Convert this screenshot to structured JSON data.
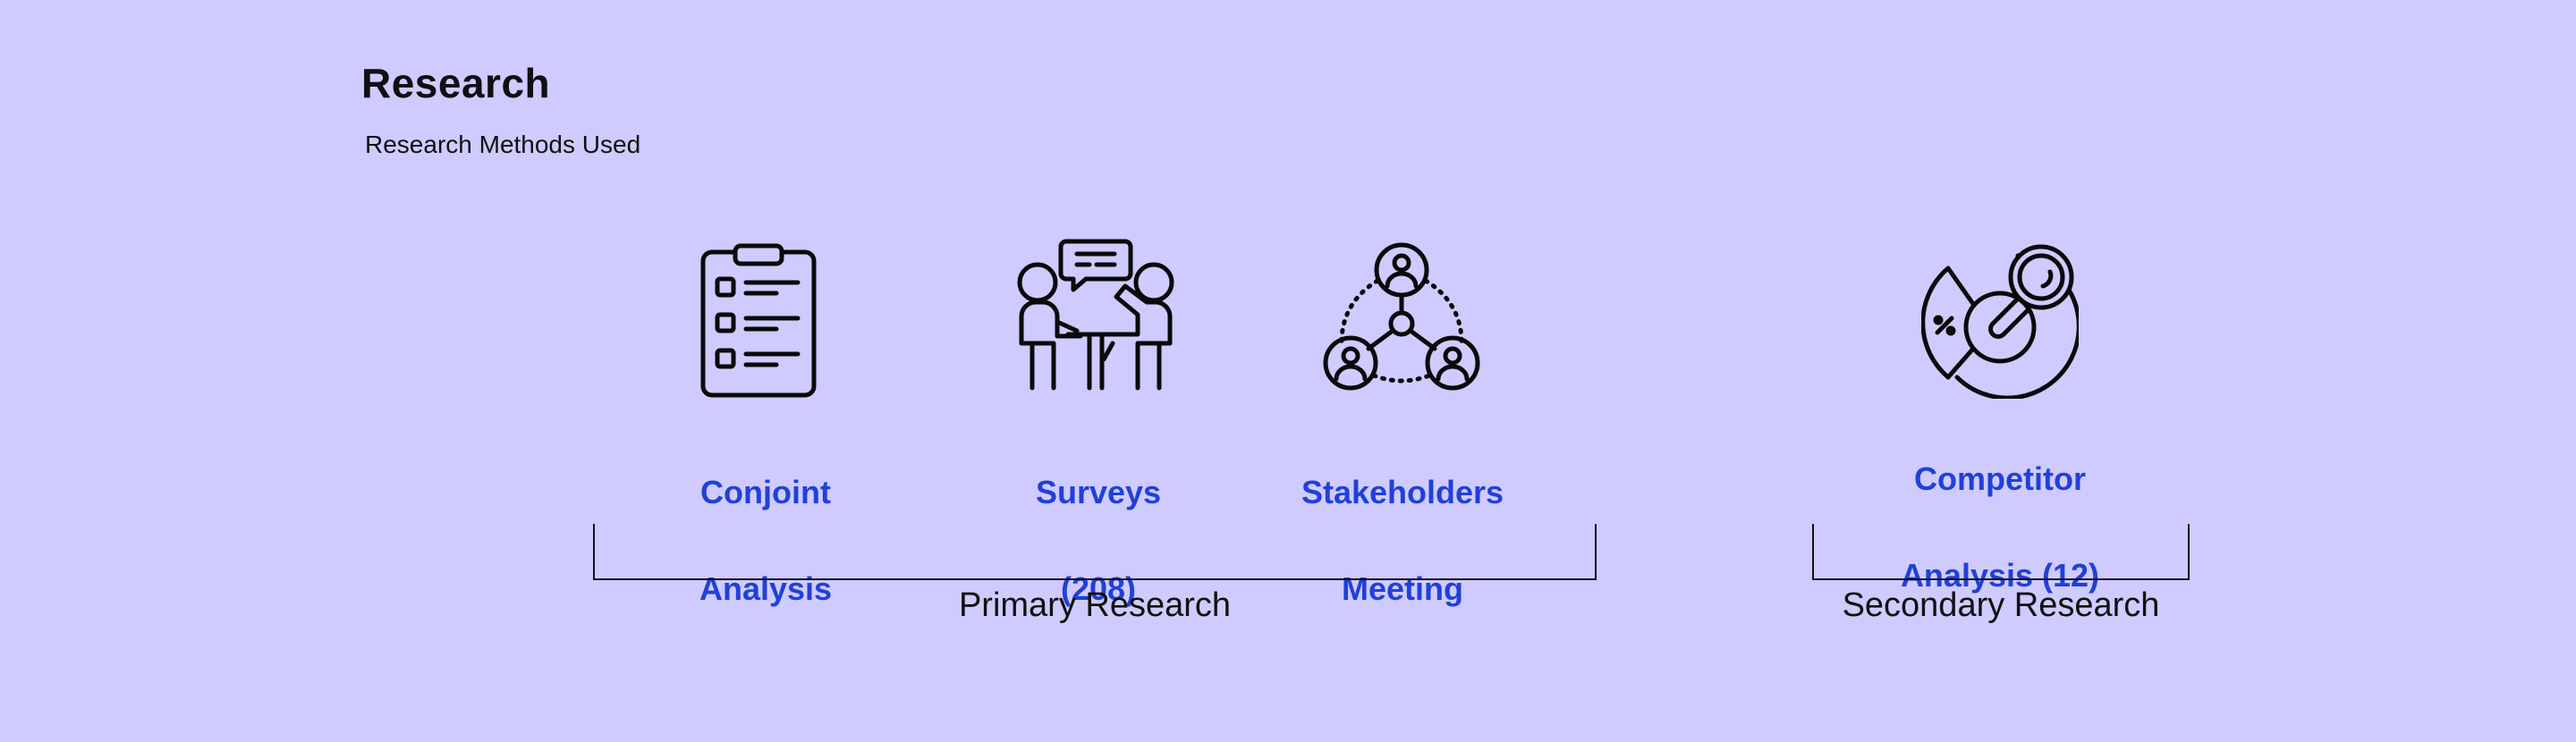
{
  "header": {
    "title": "Research",
    "subtitle": "Research Methods Used"
  },
  "methods": [
    {
      "icon": "clipboard-checklist-icon",
      "line1": "Conjoint",
      "line2": "Analysis"
    },
    {
      "icon": "people-meeting-chat-icon",
      "line1": "Surveys",
      "line2": "(208)"
    },
    {
      "icon": "stakeholder-network-icon",
      "line1": "Stakeholders",
      "line2": "Meeting"
    },
    {
      "icon": "market-analysis-magnifier-icon",
      "line1": "Competitor",
      "line2": "Analysis (12)"
    }
  ],
  "groups": {
    "primary": "Primary Research",
    "secondary": "Secondary Research"
  },
  "colors": {
    "background": "#cfcbfe",
    "accent": "#2040d8",
    "ink": "#111111"
  }
}
